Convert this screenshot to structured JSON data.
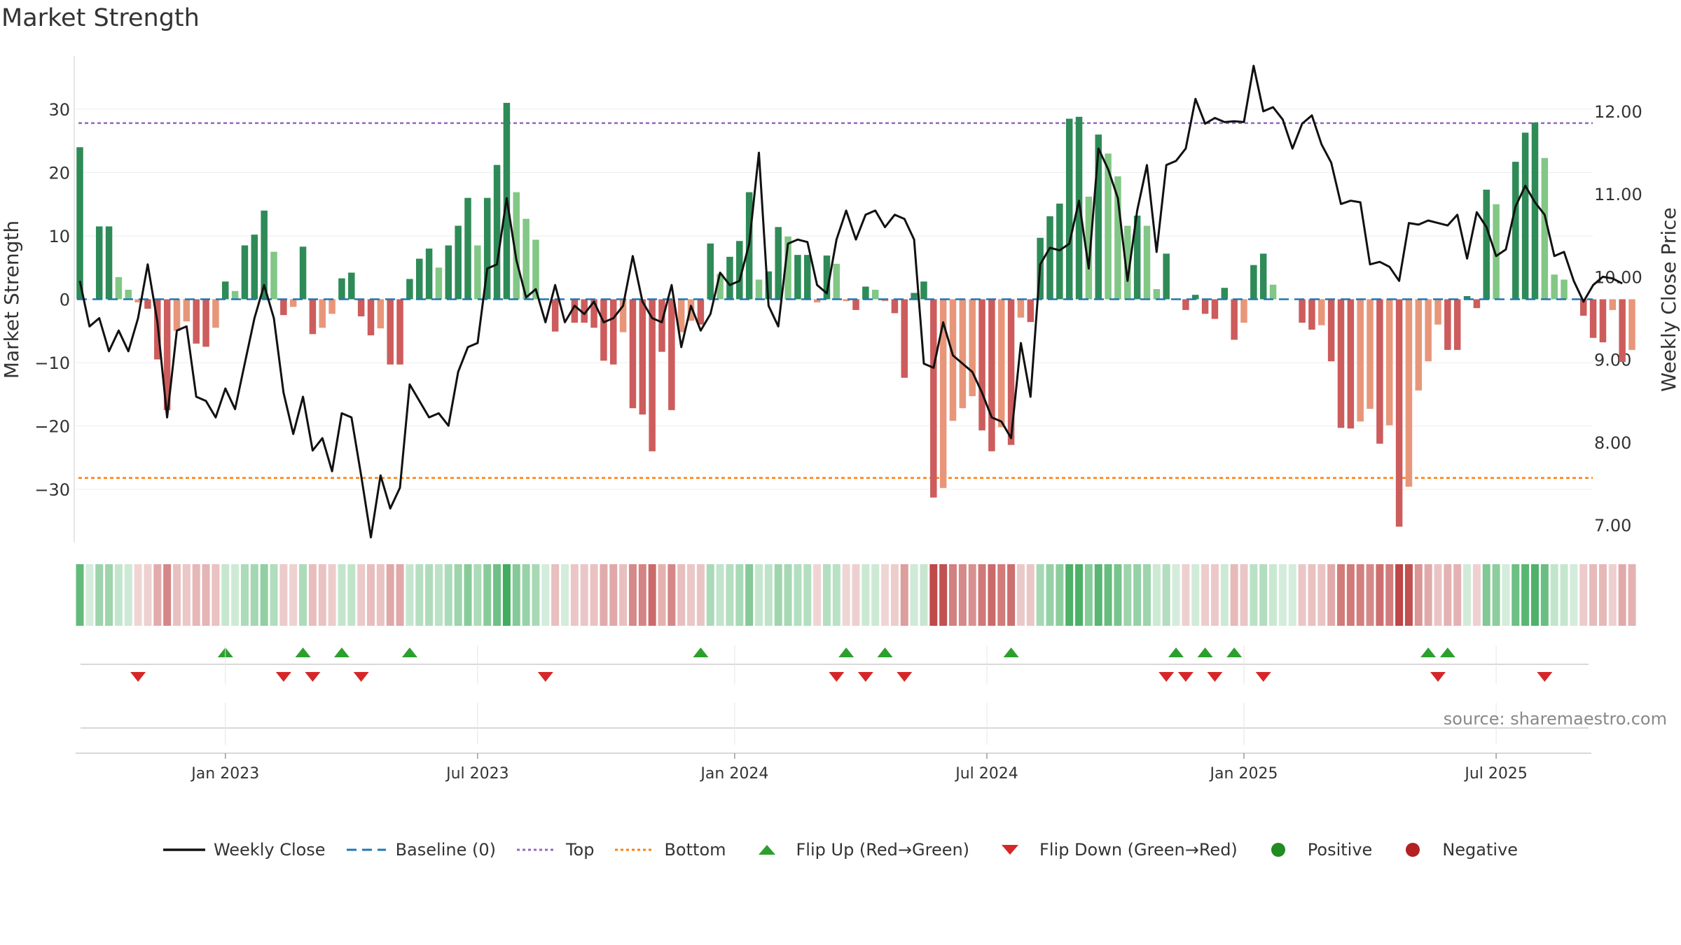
{
  "chart_data": {
    "type": "bar",
    "title": "Market Strength",
    "source": "source: sharemaestro.com",
    "ylabel": "Market Strength",
    "y2label": "Weekly Close Price",
    "ylim": [
      -38,
      38
    ],
    "y2lim": [
      6.8,
      12.9
    ],
    "yticks": [
      "−30",
      "−20",
      "−10",
      "0",
      "10",
      "20",
      "30"
    ],
    "yticks_values": [
      -30,
      -20,
      -10,
      0,
      10,
      20,
      30
    ],
    "y2ticks": [
      "7.00",
      "8.00",
      "9.00",
      "10.00",
      "11.00",
      "12.00"
    ],
    "y2ticks_values": [
      7,
      8,
      9,
      10,
      11,
      12
    ],
    "xticks": [
      "Jan 2023",
      "Jul 2023",
      "Jan 2024",
      "Jul 2024",
      "Jan 2025",
      "Jul 2025"
    ],
    "xticks_index": [
      15,
      41,
      67.5,
      93.5,
      120,
      146
    ],
    "top_line": 27.8,
    "bottom_line": -28.2,
    "colors": {
      "strong_green": "#2e8b57",
      "light_green": "#82c785",
      "light_red": "#e8967a",
      "strong_red": "#cd5c5c",
      "price_line": "#111111",
      "baseline": "#1f77b4",
      "top": "#9467bd",
      "bottom": "#ff7f0e",
      "flip_up": "#2ca02c",
      "flip_down": "#d62728",
      "positive": "#228b22",
      "negative": "#b22222"
    },
    "strength": [
      24,
      0,
      11.5,
      11.5,
      3.5,
      1.5,
      -0.5,
      -1.5,
      -9.5,
      -17.5,
      -5,
      -3.5,
      -7,
      -7.5,
      -4.5,
      2.8,
      1.3,
      8.5,
      10.2,
      14,
      7.5,
      -2.5,
      -1.2,
      8.3,
      -5.5,
      -4.5,
      -2.3,
      3.3,
      4.2,
      -2.7,
      -5.7,
      -4.6,
      -10.3,
      -10.3,
      3.2,
      6.4,
      8,
      5,
      8.5,
      11.6,
      16,
      8.5,
      16,
      21.2,
      31,
      16.9,
      12.7,
      9.4,
      0,
      -5.1,
      0,
      -3.7,
      -3.7,
      -4.5,
      -9.7,
      -10.3,
      -5.2,
      -17.2,
      -18.2,
      -24,
      -8.3,
      -17.5,
      -5.2,
      -3.4,
      -4,
      8.8,
      4,
      6.7,
      9.2,
      16.9,
      3.1,
      4.4,
      11.4,
      9.9,
      7,
      7,
      -0.5,
      6.9,
      5.6,
      -0.3,
      -1.7,
      2,
      1.5,
      -0.3,
      -2.2,
      -12.4,
      1,
      2.8,
      -31.3,
      -29.8,
      -19.2,
      -17.2,
      -15.3,
      -20.7,
      -24,
      -20.2,
      -23,
      -2.9,
      -3.6,
      9.7,
      13.1,
      15.1,
      28.5,
      28.8,
      16.2,
      26,
      23,
      19.4,
      11.6,
      13.2,
      11.6,
      1.6,
      7.2,
      0,
      -1.7,
      0.7,
      -2.3,
      -3.1,
      1.8,
      -6.4,
      -3.7,
      5.4,
      7.2,
      2.3,
      0,
      0,
      -3.7,
      -4.8,
      -4.1,
      -9.8,
      -20.3,
      -20.4,
      -19.3,
      -17.3,
      -22.8,
      -19.9,
      -35.9,
      -29.6,
      -14.4,
      -9.8,
      -4,
      -8,
      -8,
      0.5,
      -1.4,
      17.3,
      15,
      0,
      21.7,
      26.3,
      27.9,
      22.3,
      3.9,
      3.1,
      0,
      -2.6,
      -6.1,
      -6.8,
      -1.7,
      -9.9,
      -8
    ],
    "strength_classes": [
      "sg",
      "n",
      "sg",
      "sg",
      "lg",
      "lg",
      "lr",
      "sr",
      "sr",
      "sr",
      "lr",
      "lr",
      "sr",
      "sr",
      "lr",
      "sg",
      "lg",
      "sg",
      "sg",
      "sg",
      "lg",
      "sr",
      "lr",
      "sg",
      "sr",
      "lr",
      "lr",
      "sg",
      "sg",
      "sr",
      "sr",
      "lr",
      "sr",
      "sr",
      "sg",
      "sg",
      "sg",
      "lg",
      "sg",
      "sg",
      "sg",
      "lg",
      "sg",
      "sg",
      "sg",
      "lg",
      "lg",
      "lg",
      "n",
      "sr",
      "n",
      "sr",
      "sr",
      "sr",
      "sr",
      "sr",
      "lr",
      "sr",
      "sr",
      "sr",
      "sr",
      "sr",
      "lr",
      "lr",
      "sr",
      "sg",
      "lg",
      "sg",
      "sg",
      "sg",
      "lg",
      "sg",
      "sg",
      "lg",
      "sg",
      "sg",
      "lr",
      "sg",
      "lg",
      "lr",
      "sr",
      "sg",
      "lg",
      "lr",
      "sr",
      "sr",
      "sg",
      "sg",
      "sr",
      "lr",
      "lr",
      "lr",
      "lr",
      "sr",
      "sr",
      "lr",
      "sr",
      "lr",
      "sr",
      "sg",
      "sg",
      "sg",
      "sg",
      "sg",
      "lg",
      "sg",
      "lg",
      "lg",
      "lg",
      "sg",
      "lg",
      "lg",
      "sg",
      "n",
      "sr",
      "sg",
      "sr",
      "sr",
      "sg",
      "sr",
      "lr",
      "sg",
      "sg",
      "lg",
      "n",
      "n",
      "sr",
      "sr",
      "lr",
      "sr",
      "sr",
      "sr",
      "lr",
      "lr",
      "sr",
      "lr",
      "sr",
      "lr",
      "lr",
      "lr",
      "lr",
      "sr",
      "sr",
      "sg",
      "sr",
      "sg",
      "lg",
      "n",
      "sg",
      "sg",
      "sg",
      "lg",
      "lg",
      "lg",
      "n",
      "sr",
      "sr",
      "sr",
      "lr",
      "sr",
      "lr"
    ],
    "price": [
      9.95,
      9.4,
      9.5,
      9.1,
      9.35,
      9.1,
      9.5,
      10.15,
      9.45,
      8.3,
      9.35,
      9.4,
      8.55,
      8.5,
      8.3,
      8.65,
      8.4,
      8.95,
      9.5,
      9.9,
      9.5,
      8.6,
      8.1,
      8.55,
      7.9,
      8.05,
      7.65,
      8.35,
      8.3,
      7.6,
      6.85,
      7.6,
      7.2,
      7.45,
      8.7,
      8.5,
      8.3,
      8.35,
      8.2,
      8.85,
      9.15,
      9.2,
      10.1,
      10.15,
      10.95,
      10.2,
      9.75,
      9.85,
      9.45,
      9.9,
      9.45,
      9.65,
      9.55,
      9.7,
      9.45,
      9.5,
      9.65,
      10.25,
      9.7,
      9.5,
      9.45,
      9.9,
      9.15,
      9.65,
      9.35,
      9.55,
      10.05,
      9.9,
      9.95,
      10.4,
      11.5,
      9.65,
      9.4,
      10.4,
      10.45,
      10.42,
      9.9,
      9.8,
      10.45,
      10.8,
      10.45,
      10.75,
      10.8,
      10.6,
      10.75,
      10.7,
      10.45,
      8.95,
      8.9,
      9.45,
      9.05,
      8.95,
      8.85,
      8.6,
      8.3,
      8.25,
      8.05,
      9.2,
      8.55,
      10.15,
      10.35,
      10.32,
      10.4,
      10.92,
      10.1,
      11.55,
      11.3,
      10.95,
      9.95,
      10.8,
      11.35,
      10.3,
      11.35,
      11.4,
      11.55,
      12.15,
      11.85,
      11.92,
      11.87,
      11.88,
      11.87,
      12.55,
      12.0,
      12.05,
      11.9,
      11.55,
      11.85,
      11.95,
      11.6,
      11.38,
      10.88,
      10.92,
      10.9,
      10.15,
      10.18,
      10.12,
      9.95,
      10.65,
      10.63,
      10.68,
      10.65,
      10.62,
      10.75,
      10.22,
      10.78,
      10.6,
      10.25,
      10.33,
      10.85,
      11.1,
      10.9,
      10.75,
      10.25,
      10.3,
      9.95,
      9.7,
      9.9,
      10.0,
      9.98,
      9.92
    ],
    "flip_up_index": [
      15,
      23,
      27,
      34,
      64,
      79,
      83,
      96,
      113,
      116,
      119,
      139,
      141
    ],
    "flip_down_index": [
      6,
      21,
      24,
      29,
      48,
      78,
      81,
      85,
      112,
      114,
      117,
      122,
      140,
      151
    ],
    "legend": [
      {
        "label": "Weekly Close",
        "kind": "line",
        "color": "#111111"
      },
      {
        "label": "Baseline (0)",
        "kind": "dash",
        "color": "#1f77b4"
      },
      {
        "label": "Top",
        "kind": "dot",
        "color": "#9467bd"
      },
      {
        "label": "Bottom",
        "kind": "dot",
        "color": "#ff7f0e"
      },
      {
        "label": "Flip Up (Red→Green)",
        "kind": "tri-up",
        "color": "#2ca02c"
      },
      {
        "label": "Flip Down (Green→Red)",
        "kind": "tri-down",
        "color": "#d62728"
      },
      {
        "label": "Positive",
        "kind": "circle",
        "color": "#228b22"
      },
      {
        "label": "Negative",
        "kind": "circle",
        "color": "#b22222"
      }
    ]
  }
}
